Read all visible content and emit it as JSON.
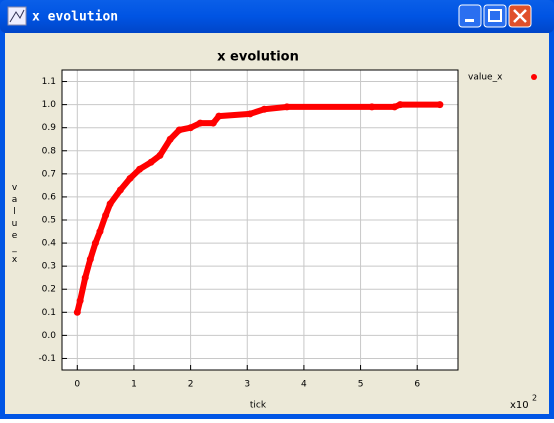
{
  "window_title": "x evolution",
  "chart_data": {
    "type": "line",
    "title": "x evolution",
    "x_label": "tick",
    "y_label": "value_x",
    "x_scale_label": "x10",
    "x_scale_exponent": "2",
    "xlim": [
      -0.27,
      6.72
    ],
    "xticks": [
      0,
      1,
      2,
      3,
      4,
      5,
      6
    ],
    "ylim": [
      -0.15,
      1.15
    ],
    "yticks": [
      -0.1,
      {
        "value": 0,
        "label": "0.0"
      },
      0.1,
      0.2,
      0.3,
      0.4,
      0.5,
      0.6,
      0.7,
      0.8,
      0.9,
      {
        "value": 1,
        "label": "1.0"
      },
      1.1
    ],
    "grid": true,
    "legend": "right",
    "series": [
      {
        "name": "value_x",
        "color": "#ff0000",
        "x": [
          0,
          0.05,
          0.14,
          0.23,
          0.32,
          0.4,
          0.5,
          0.58,
          0.76,
          0.93,
          1.1,
          1.3,
          1.46,
          1.64,
          1.8,
          2.0,
          2.17,
          2.4,
          2.5,
          3.05,
          3.3,
          3.7,
          5.2,
          5.6,
          5.7,
          6.4
        ],
        "values": [
          0.1,
          0.15,
          0.25,
          0.33,
          0.4,
          0.45,
          0.52,
          0.57,
          0.63,
          0.68,
          0.72,
          0.75,
          0.78,
          0.85,
          0.89,
          0.9,
          0.92,
          0.92,
          0.95,
          0.96,
          0.98,
          0.99,
          0.99,
          0.99,
          1.0,
          1.0
        ]
      }
    ]
  }
}
